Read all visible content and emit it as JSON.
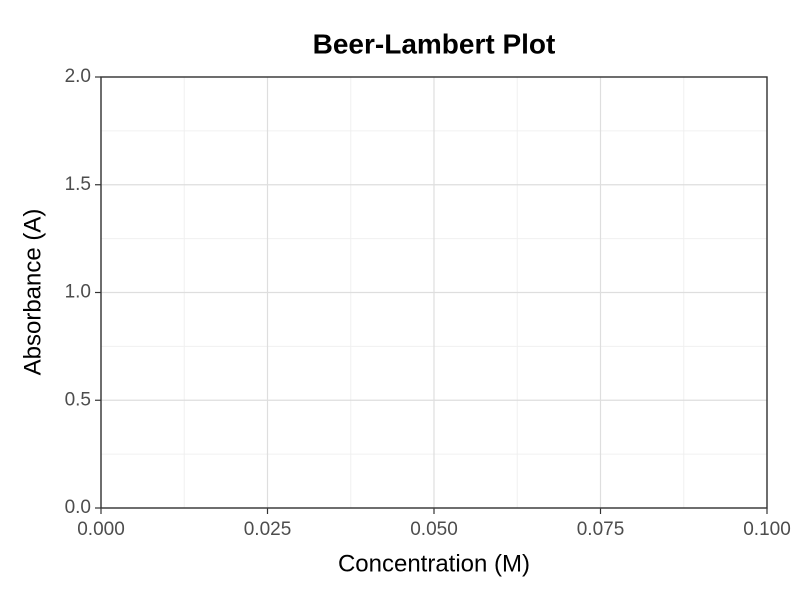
{
  "chart_data": {
    "type": "scatter",
    "title": "Beer-Lambert Plot",
    "x_label": "Concentration (M)",
    "y_label": "Absorbance (A)",
    "xlim": [
      0,
      0.1
    ],
    "xticks": [
      {
        "value": 0,
        "label": "0.000"
      },
      {
        "value": 0.025,
        "label": "0.025"
      },
      {
        "value": 0.05,
        "label": "0.050"
      },
      {
        "value": 0.075,
        "label": "0.075"
      },
      {
        "value": 0.1,
        "label": "0.100"
      }
    ],
    "ylim": [
      0,
      2
    ],
    "yticks": [
      {
        "value": 0,
        "label": "0.0"
      },
      {
        "value": 0.5,
        "label": "0.5"
      },
      {
        "value": 1,
        "label": "1.0"
      },
      {
        "value": 1.5,
        "label": "1.5"
      },
      {
        "value": 2,
        "label": "2.0"
      }
    ],
    "grid": true,
    "minor_grid": true
  }
}
